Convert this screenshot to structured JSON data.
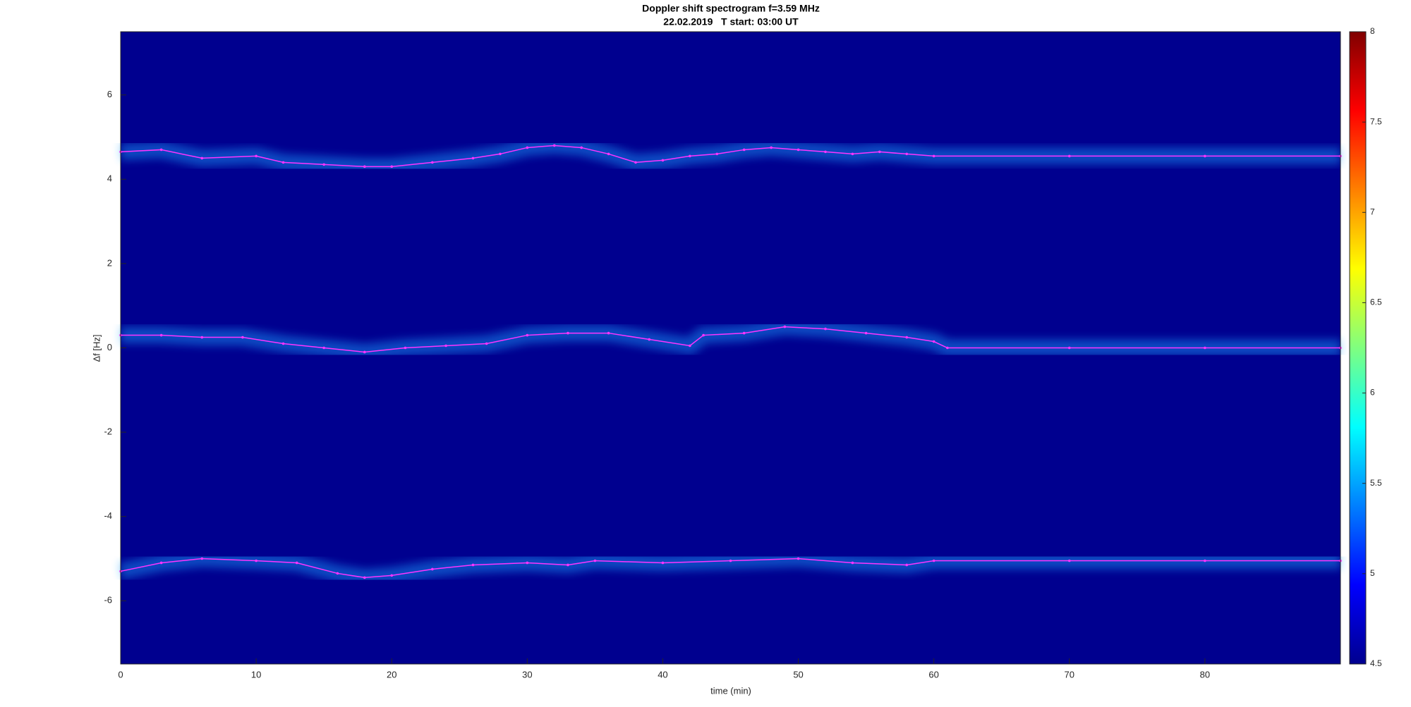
{
  "chart_data": {
    "type": "spectrogram",
    "title": "Doppler shift spectrogram f=3.59 MHz",
    "subtitle": "22.02.2019   T start: 03:00 UT",
    "xlabel": "time (min)",
    "ylabel": "Δf [Hz]",
    "xlim": [
      0,
      90
    ],
    "ylim": [
      -7.5,
      7.5
    ],
    "xticks": [
      0,
      10,
      20,
      30,
      40,
      50,
      60,
      70,
      80
    ],
    "yticks": [
      -6,
      -4,
      -2,
      0,
      2,
      4,
      6
    ],
    "background": "#00008f",
    "colorbar": {
      "clim": [
        4.5,
        8
      ],
      "ticks": [
        4.5,
        5,
        5.5,
        6,
        6.5,
        7,
        7.5,
        8
      ],
      "colormap": "jet"
    },
    "series": [
      {
        "color": "#ff33ff",
        "x": [
          0,
          3,
          6,
          10,
          12,
          15,
          18,
          20,
          23,
          26,
          28,
          30,
          32,
          34,
          36,
          38,
          40,
          42,
          44,
          46,
          48,
          50,
          52,
          54,
          56,
          58,
          60,
          70,
          80,
          90
        ],
        "values": [
          4.65,
          4.7,
          4.5,
          4.55,
          4.4,
          4.35,
          4.3,
          4.3,
          4.4,
          4.5,
          4.6,
          4.75,
          4.8,
          4.75,
          4.6,
          4.4,
          4.45,
          4.55,
          4.6,
          4.7,
          4.75,
          4.7,
          4.65,
          4.6,
          4.65,
          4.6,
          4.55,
          4.55,
          4.55,
          4.55
        ]
      },
      {
        "color": "#ff33ff",
        "x": [
          0,
          3,
          6,
          9,
          12,
          15,
          18,
          21,
          24,
          27,
          30,
          33,
          36,
          39,
          42,
          43,
          46,
          49,
          52,
          55,
          58,
          60,
          61,
          70,
          80,
          90
        ],
        "values": [
          0.3,
          0.3,
          0.25,
          0.25,
          0.1,
          0.0,
          -0.1,
          0.0,
          0.05,
          0.1,
          0.3,
          0.35,
          0.35,
          0.2,
          0.05,
          0.3,
          0.35,
          0.5,
          0.45,
          0.35,
          0.25,
          0.15,
          0.0,
          0.0,
          0.0,
          0.0
        ]
      },
      {
        "color": "#ff33ff",
        "x": [
          0,
          3,
          6,
          10,
          13,
          16,
          18,
          20,
          23,
          26,
          30,
          33,
          35,
          40,
          45,
          50,
          54,
          58,
          60,
          70,
          80,
          90
        ],
        "values": [
          -5.3,
          -5.1,
          -5.0,
          -5.05,
          -5.1,
          -5.35,
          -5.45,
          -5.4,
          -5.25,
          -5.15,
          -5.1,
          -5.15,
          -5.05,
          -5.1,
          -5.05,
          -5.0,
          -5.1,
          -5.15,
          -5.05,
          -5.05,
          -5.05,
          -5.05
        ]
      }
    ]
  }
}
